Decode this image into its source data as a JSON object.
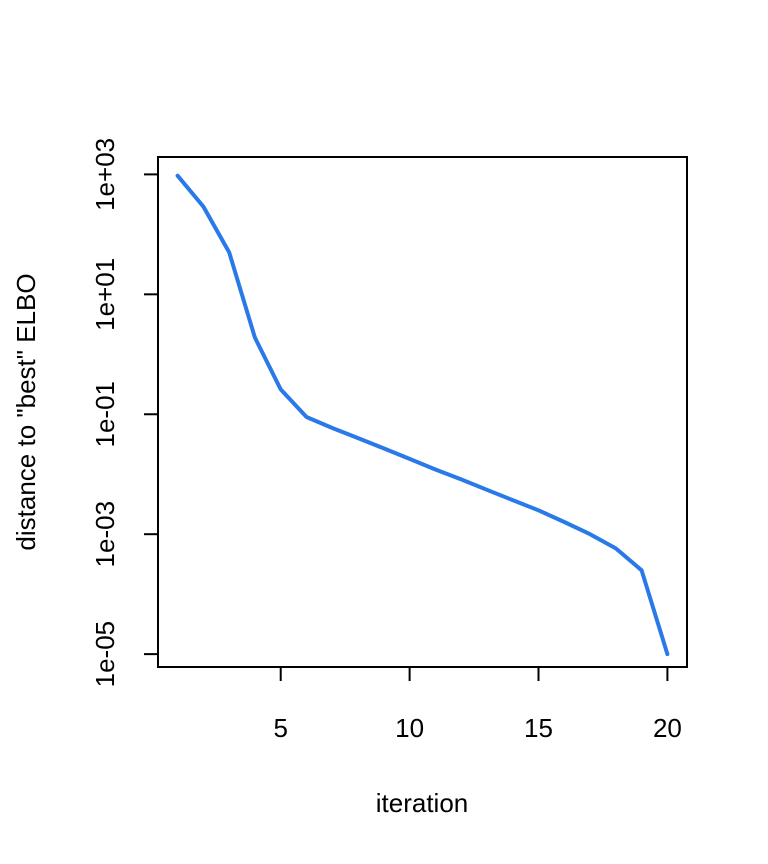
{
  "chart_data": {
    "type": "line",
    "title": "",
    "xlabel": "iteration",
    "ylabel": "distance to \"best\" ELBO",
    "x_scale": "linear",
    "y_scale": "log",
    "xlim": [
      0.24,
      20.76
    ],
    "ylim": [
      6.1e-06,
      1950
    ],
    "x_ticks": [
      5,
      10,
      15,
      20
    ],
    "x_tick_labels": [
      "5",
      "10",
      "15",
      "20"
    ],
    "y_ticks": [
      1e-05,
      0.001,
      0.1,
      10,
      1000
    ],
    "y_tick_labels": [
      "1e-05",
      "1e-03",
      "1e-01",
      "1e+01",
      "1e+03"
    ],
    "grid": false,
    "line_color": "#2979e8",
    "series": [
      {
        "x": [
          1,
          2,
          3,
          4,
          5,
          6,
          7,
          8,
          9,
          10,
          11,
          12,
          13,
          14,
          15,
          16,
          17,
          18,
          19,
          20
        ],
        "values": [
          950,
          290,
          50,
          1.9,
          0.26,
          0.09,
          0.059,
          0.04,
          0.027,
          0.018,
          0.012,
          0.0082,
          0.0055,
          0.0037,
          0.0025,
          0.0016,
          0.001,
          0.00058,
          0.00025,
          1e-05
        ]
      }
    ]
  }
}
